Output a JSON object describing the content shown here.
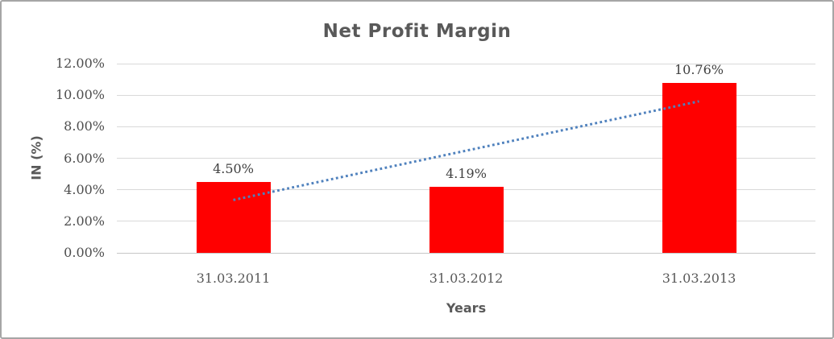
{
  "chart_data": {
    "type": "bar",
    "title": "Net Profit Margin",
    "xlabel": "Years",
    "ylabel": "IN (%)",
    "categories": [
      "31.03.2011",
      "31.03.2012",
      "31.03.2013"
    ],
    "values": [
      4.5,
      4.19,
      10.76
    ],
    "data_labels": [
      "4.50%",
      "4.19%",
      "10.76%"
    ],
    "ylim": [
      0,
      12
    ],
    "ytick_labels": [
      "0.00%",
      "2.00%",
      "4.00%",
      "6.00%",
      "8.00%",
      "10.00%",
      "12.00%"
    ],
    "grid": true,
    "legend": "none",
    "bar_color": "#FF0000",
    "trendline": {
      "type": "linear",
      "style": "dotted",
      "color": "#4F81BD",
      "start_value": 3.35,
      "end_value": 9.61
    },
    "colors": {
      "title_text": "#595959",
      "axis_title_text": "#595959",
      "tick_text": "#4D4D4D",
      "data_label_text": "#404040",
      "gridline": "#D9D9D9",
      "axis_line": "#C6C6C6",
      "frame_border": "#A6A6A6",
      "background": "#FFFFFF"
    }
  }
}
